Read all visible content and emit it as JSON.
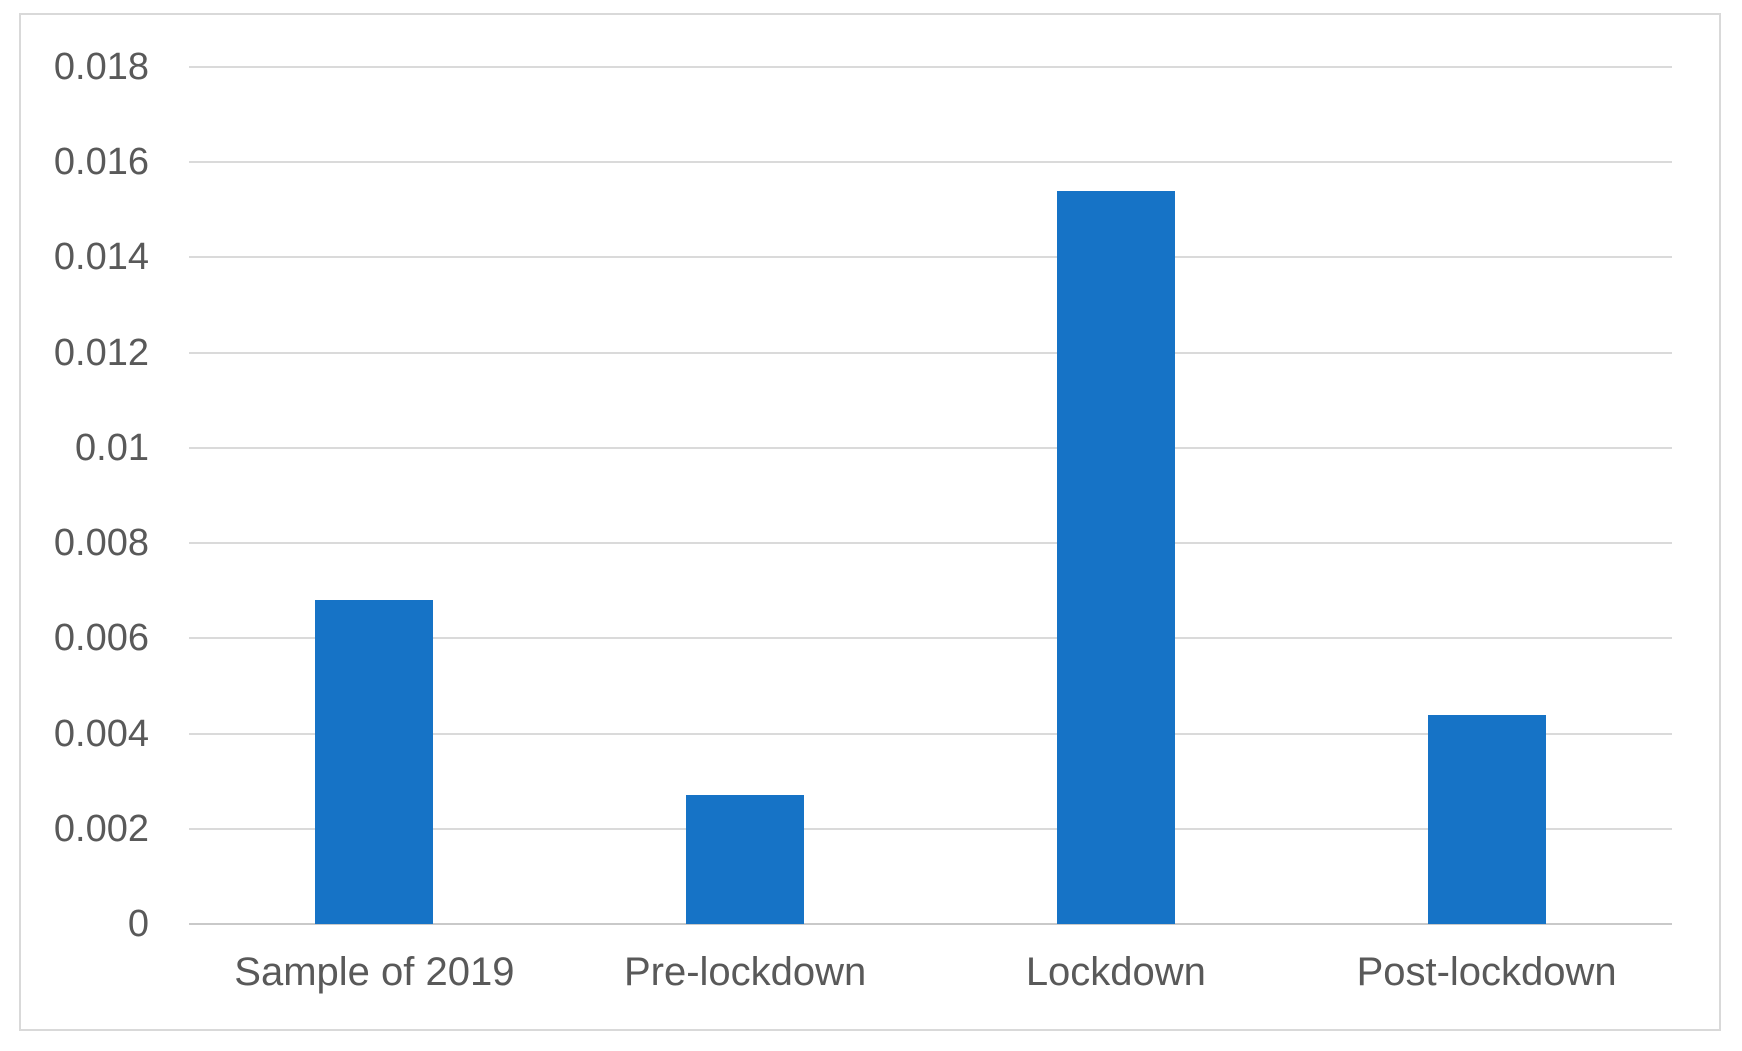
{
  "chart_data": {
    "type": "bar",
    "title": "",
    "xlabel": "",
    "ylabel": "",
    "categories": [
      "Sample of 2019",
      "Pre-lockdown",
      "Lockdown",
      "Post-lockdown"
    ],
    "values": [
      0.0068,
      0.0027,
      0.0154,
      0.0044
    ],
    "ylim": [
      0,
      0.018
    ],
    "ytick_step": 0.002,
    "yticks": [
      {
        "value": 0,
        "label": "0"
      },
      {
        "value": 0.002,
        "label": "0.002"
      },
      {
        "value": 0.004,
        "label": "0.004"
      },
      {
        "value": 0.006,
        "label": "0.006"
      },
      {
        "value": 0.008,
        "label": "0.008"
      },
      {
        "value": 0.01,
        "label": "0.01"
      },
      {
        "value": 0.012,
        "label": "0.012"
      },
      {
        "value": 0.014,
        "label": "0.014"
      },
      {
        "value": 0.016,
        "label": "0.016"
      },
      {
        "value": 0.018,
        "label": "0.018"
      }
    ],
    "grid": true,
    "legend": false,
    "legend_position": "none",
    "bar_color": "#1673c6",
    "text_color": "#595959",
    "gridline_color": "#dadada",
    "frame_border_color": "#d9d9d9"
  }
}
